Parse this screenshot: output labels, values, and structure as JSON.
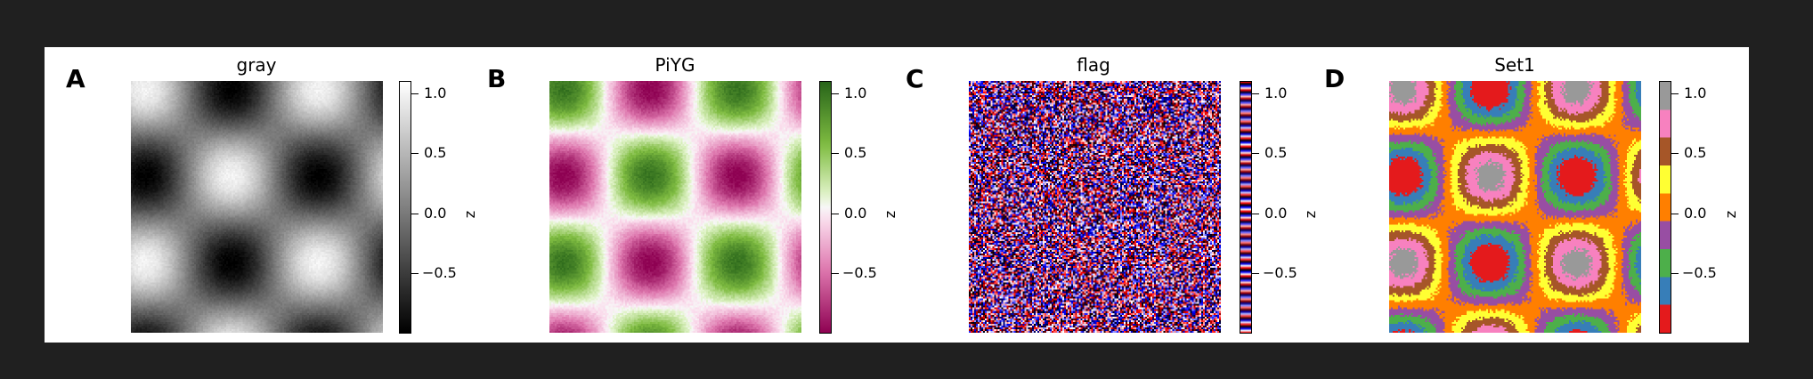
{
  "figure": {
    "panels": [
      {
        "letter": "A",
        "title": "gray",
        "cmap": "gray",
        "cbar_label": "z"
      },
      {
        "letter": "B",
        "title": "PiYG",
        "cmap": "PiYG",
        "cbar_label": "z"
      },
      {
        "letter": "C",
        "title": "flag",
        "cmap": "flag",
        "cbar_label": "z"
      },
      {
        "letter": "D",
        "title": "Set1",
        "cmap": "Set1",
        "cbar_label": "z"
      }
    ]
  },
  "chart_data": [
    {
      "type": "heatmap",
      "title": "gray",
      "colormap": "gray",
      "colorbar": {
        "label": "z",
        "ticks": [
          1.0,
          0.5,
          0.0,
          -0.5
        ],
        "tick_labels": [
          "1.0",
          "0.5",
          "0.0",
          "−0.5"
        ],
        "range": [
          -1.0,
          1.1
        ]
      }
    },
    {
      "type": "heatmap",
      "title": "PiYG",
      "colormap": "PiYG",
      "colorbar": {
        "label": "z",
        "ticks": [
          1.0,
          0.5,
          0.0,
          -0.5
        ],
        "tick_labels": [
          "1.0",
          "0.5",
          "0.0",
          "−0.5"
        ],
        "range": [
          -1.0,
          1.1
        ]
      }
    },
    {
      "type": "heatmap",
      "title": "flag",
      "colormap": "flag",
      "colorbar": {
        "label": "z",
        "ticks": [
          1.0,
          0.5,
          0.0,
          -0.5
        ],
        "tick_labels": [
          "1.0",
          "0.5",
          "0.0",
          "−0.5"
        ],
        "range": [
          -1.0,
          1.1
        ]
      }
    },
    {
      "type": "heatmap",
      "title": "Set1",
      "colormap": "Set1",
      "colorbar": {
        "label": "z",
        "ticks": [
          1.0,
          0.5,
          0.0,
          -0.5
        ],
        "tick_labels": [
          "1.0",
          "0.5",
          "0.0",
          "−0.5"
        ],
        "range": [
          -1.0,
          1.1
        ]
      }
    }
  ]
}
